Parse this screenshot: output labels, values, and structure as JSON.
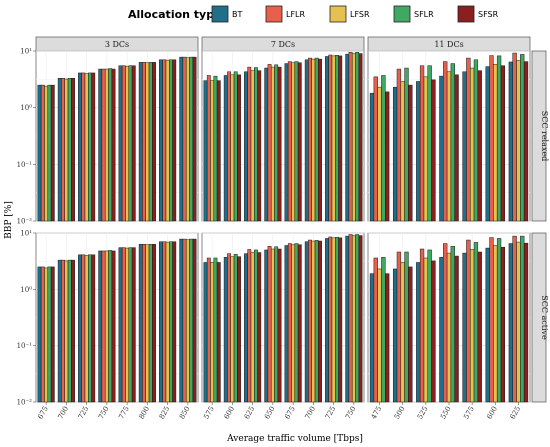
{
  "chart_data": {
    "type": "bar",
    "legend_title": "Allocation type",
    "legend_position": "top",
    "legend": [
      {
        "key": "BT",
        "label": "BT",
        "color": "#1f6f8b"
      },
      {
        "key": "LFLR",
        "label": "LFLR",
        "color": "#e8604c"
      },
      {
        "key": "LFSR",
        "label": "LFSR",
        "color": "#e7c14f"
      },
      {
        "key": "SFLR",
        "label": "SFLR",
        "color": "#3fa862"
      },
      {
        "key": "SFSR",
        "label": "SFSR",
        "color": "#8b1e1e"
      }
    ],
    "xlabel": "Average traffic volume [Tbps]",
    "ylabel": "BBP [%]",
    "yscale": "log10",
    "ylim": [
      0.01,
      10
    ],
    "yticks": [
      0.01,
      0.1,
      1,
      10
    ],
    "ytick_labels": [
      "10^{-2}",
      "10^{-1}",
      "10^{0}",
      "10^{1}"
    ],
    "grid": true,
    "columns": [
      {
        "label": "3 DCs",
        "categories": [
          "675",
          "700",
          "725",
          "750",
          "775",
          "800",
          "825",
          "850"
        ]
      },
      {
        "label": "7 DCs",
        "categories": [
          "575",
          "600",
          "625",
          "650",
          "675",
          "700",
          "725",
          "750"
        ]
      },
      {
        "label": "11 DCs",
        "categories": [
          "475",
          "500",
          "525",
          "550",
          "575",
          "600",
          "625"
        ]
      }
    ],
    "rows": [
      {
        "label": "SCC relaxed"
      },
      {
        "label": "SCC active"
      }
    ],
    "panels": [
      {
        "row": 0,
        "col": 0,
        "series": [
          {
            "key": "BT",
            "values": [
              2.5,
              3.3,
              4.1,
              4.8,
              5.5,
              6.3,
              7.0,
              7.8
            ]
          },
          {
            "key": "LFLR",
            "values": [
              2.5,
              3.3,
              4.1,
              4.8,
              5.5,
              6.3,
              7.0,
              7.8
            ]
          },
          {
            "key": "LFSR",
            "values": [
              2.4,
              3.2,
              4.0,
              4.8,
              5.4,
              6.2,
              6.9,
              7.6
            ]
          },
          {
            "key": "SFLR",
            "values": [
              2.5,
              3.3,
              4.1,
              4.9,
              5.5,
              6.3,
              7.0,
              7.8
            ]
          },
          {
            "key": "SFSR",
            "values": [
              2.5,
              3.3,
              4.1,
              4.8,
              5.5,
              6.3,
              7.0,
              7.8
            ]
          }
        ]
      },
      {
        "row": 0,
        "col": 1,
        "series": [
          {
            "key": "BT",
            "values": [
              3.0,
              3.7,
              4.3,
              5.0,
              6.0,
              7.0,
              8.0,
              8.8
            ]
          },
          {
            "key": "LFLR",
            "values": [
              3.7,
              4.3,
              5.2,
              5.8,
              6.5,
              7.5,
              8.5,
              9.5
            ]
          },
          {
            "key": "LFSR",
            "values": [
              3.0,
              3.8,
              4.5,
              5.2,
              6.2,
              7.2,
              8.2,
              9.0
            ]
          },
          {
            "key": "SFLR",
            "values": [
              3.6,
              4.3,
              5.1,
              5.7,
              6.5,
              7.5,
              8.4,
              9.5
            ]
          },
          {
            "key": "SFSR",
            "values": [
              3.0,
              3.8,
              4.5,
              5.2,
              6.2,
              7.2,
              8.2,
              9.0
            ]
          }
        ]
      },
      {
        "row": 0,
        "col": 2,
        "series": [
          {
            "key": "BT",
            "values": [
              1.8,
              2.3,
              2.9,
              3.6,
              4.3,
              5.3,
              6.4
            ]
          },
          {
            "key": "LFLR",
            "values": [
              3.5,
              4.8,
              5.5,
              6.5,
              7.5,
              8.3,
              9.2
            ]
          },
          {
            "key": "LFSR",
            "values": [
              2.3,
              2.9,
              3.5,
              4.3,
              5.0,
              5.8,
              6.8
            ]
          },
          {
            "key": "SFLR",
            "values": [
              3.7,
              5.0,
              5.5,
              6.0,
              7.0,
              8.2,
              8.7
            ]
          },
          {
            "key": "SFSR",
            "values": [
              1.9,
              2.5,
              3.1,
              3.8,
              4.5,
              5.5,
              6.5
            ]
          }
        ]
      },
      {
        "row": 1,
        "col": 0,
        "series": [
          {
            "key": "BT",
            "values": [
              2.5,
              3.3,
              4.1,
              4.8,
              5.5,
              6.3,
              7.0,
              7.8
            ]
          },
          {
            "key": "LFLR",
            "values": [
              2.5,
              3.3,
              4.1,
              4.8,
              5.5,
              6.3,
              7.0,
              7.8
            ]
          },
          {
            "key": "LFSR",
            "values": [
              2.4,
              3.2,
              4.0,
              4.8,
              5.4,
              6.2,
              6.9,
              7.6
            ]
          },
          {
            "key": "SFLR",
            "values": [
              2.5,
              3.3,
              4.1,
              4.9,
              5.5,
              6.3,
              7.0,
              7.8
            ]
          },
          {
            "key": "SFSR",
            "values": [
              2.5,
              3.3,
              4.1,
              4.8,
              5.5,
              6.3,
              7.0,
              7.8
            ]
          }
        ]
      },
      {
        "row": 1,
        "col": 1,
        "series": [
          {
            "key": "BT",
            "values": [
              3.0,
              3.7,
              4.3,
              5.0,
              6.0,
              7.0,
              8.0,
              8.8
            ]
          },
          {
            "key": "LFLR",
            "values": [
              3.6,
              4.3,
              5.1,
              5.8,
              6.5,
              7.5,
              8.5,
              9.4
            ]
          },
          {
            "key": "LFSR",
            "values": [
              3.0,
              3.8,
              4.5,
              5.2,
              6.2,
              7.2,
              8.2,
              9.0
            ]
          },
          {
            "key": "SFLR",
            "values": [
              3.6,
              4.2,
              5.0,
              5.7,
              6.5,
              7.4,
              8.4,
              9.4
            ]
          },
          {
            "key": "SFSR",
            "values": [
              3.0,
              3.8,
              4.5,
              5.2,
              6.2,
              7.2,
              8.2,
              9.0
            ]
          }
        ]
      },
      {
        "row": 1,
        "col": 2,
        "series": [
          {
            "key": "BT",
            "values": [
              1.9,
              2.3,
              3.0,
              3.7,
              4.4,
              5.4,
              6.5
            ]
          },
          {
            "key": "LFLR",
            "values": [
              3.6,
              4.6,
              5.2,
              6.5,
              7.5,
              8.3,
              8.8
            ]
          },
          {
            "key": "LFSR",
            "values": [
              2.3,
              3.0,
              3.6,
              4.4,
              5.1,
              6.0,
              6.9
            ]
          },
          {
            "key": "SFLR",
            "values": [
              3.7,
              4.6,
              5.0,
              5.8,
              6.8,
              8.0,
              8.8
            ]
          },
          {
            "key": "SFSR",
            "values": [
              1.9,
              2.5,
              3.2,
              3.9,
              4.6,
              5.6,
              6.6
            ]
          }
        ]
      }
    ]
  }
}
